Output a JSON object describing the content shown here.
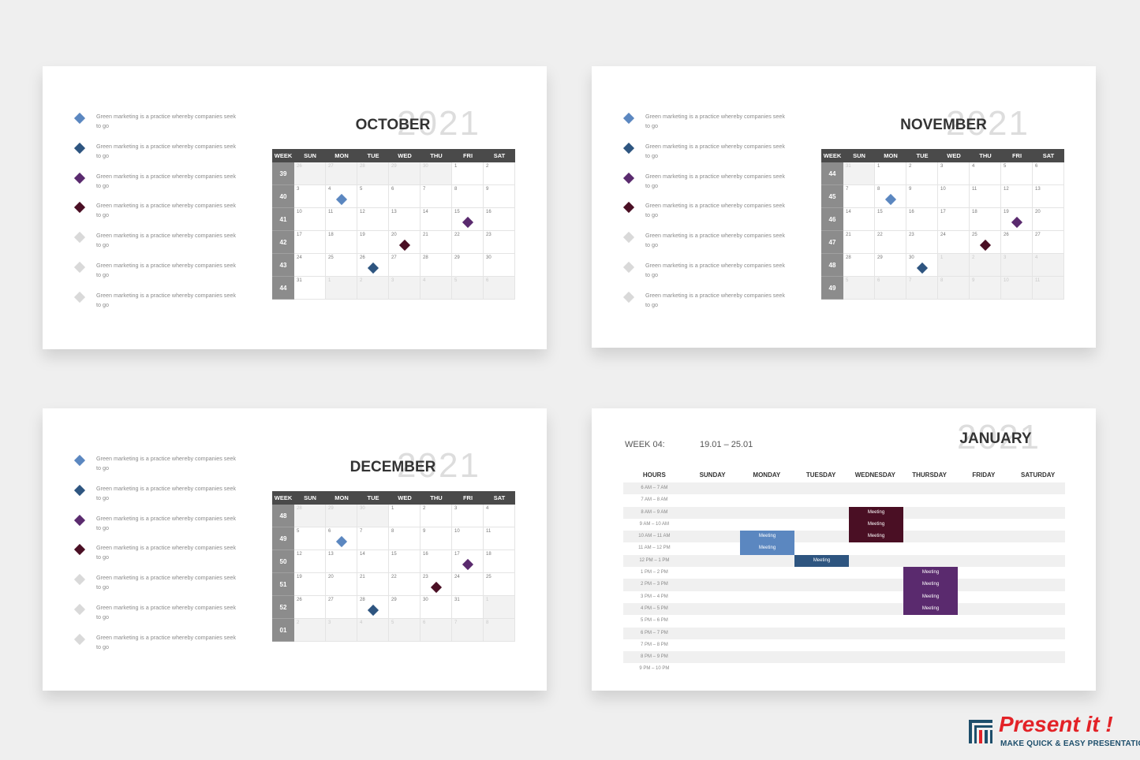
{
  "legend": {
    "text": "Green marketing is a practice whereby companies seek to go",
    "colors": [
      "#5b87c0",
      "#2e5580",
      "#5a2a6e",
      "#4a0f24",
      "#d9d9d9",
      "#d9d9d9",
      "#d9d9d9"
    ]
  },
  "weekdays": [
    "WEEK",
    "SUN",
    "MON",
    "TUE",
    "WED",
    "THU",
    "FRI",
    "SAT"
  ],
  "calendars": [
    {
      "month": "OCTOBER",
      "year": "2021",
      "weeks": [
        "39",
        "40",
        "41",
        "42",
        "43",
        "44"
      ],
      "days": [
        [
          "26",
          "27",
          "28",
          "29",
          "30",
          "1",
          "2"
        ],
        [
          "3",
          "4",
          "5",
          "6",
          "7",
          "8",
          "9"
        ],
        [
          "10",
          "11",
          "12",
          "13",
          "14",
          "15",
          "16"
        ],
        [
          "17",
          "18",
          "19",
          "20",
          "21",
          "22",
          "23"
        ],
        [
          "24",
          "25",
          "26",
          "27",
          "28",
          "29",
          "30"
        ],
        [
          "31",
          "1",
          "2",
          "3",
          "4",
          "5",
          "6"
        ]
      ]
    },
    {
      "month": "NOVEMBER",
      "year": "2021",
      "weeks": [
        "44",
        "45",
        "46",
        "47",
        "48",
        "49"
      ],
      "days": [
        [
          "31",
          "1",
          "2",
          "3",
          "4",
          "5",
          "6"
        ],
        [
          "7",
          "8",
          "9",
          "10",
          "11",
          "12",
          "13"
        ],
        [
          "14",
          "15",
          "16",
          "17",
          "18",
          "19",
          "20"
        ],
        [
          "21",
          "22",
          "23",
          "24",
          "25",
          "26",
          "27"
        ],
        [
          "28",
          "29",
          "30",
          "1",
          "2",
          "3",
          "4"
        ],
        [
          "5",
          "6",
          "7",
          "8",
          "9",
          "10",
          "11"
        ]
      ]
    },
    {
      "month": "DECEMBER",
      "year": "2021",
      "weeks": [
        "48",
        "49",
        "50",
        "51",
        "52",
        "01"
      ],
      "days": [
        [
          "28",
          "29",
          "30",
          "1",
          "2",
          "3",
          "4"
        ],
        [
          "5",
          "6",
          "7",
          "8",
          "9",
          "10",
          "11"
        ],
        [
          "12",
          "13",
          "14",
          "15",
          "16",
          "17",
          "18"
        ],
        [
          "19",
          "20",
          "21",
          "22",
          "23",
          "24",
          "25"
        ],
        [
          "26",
          "27",
          "28",
          "29",
          "30",
          "31",
          "1"
        ],
        [
          "2",
          "3",
          "4",
          "5",
          "6",
          "7",
          "8"
        ]
      ]
    }
  ],
  "weekly": {
    "month": "JANUARY",
    "year": "2021",
    "week_label": "WEEK 04:",
    "range": "19.01 – 25.01",
    "headers": [
      "HOURS",
      "SUNDAY",
      "MONDAY",
      "TUESDAY",
      "WEDNESDAY",
      "THURSDAY",
      "FRIDAY",
      "SATURDAY"
    ],
    "hours": [
      "6 AM – 7 AM",
      "7 AM – 8 AM",
      "8 AM – 9 AM",
      "9 AM – 10 AM",
      "10 AM – 11 AM",
      "11 AM – 12 PM",
      "12 PM – 1 PM",
      "1 PM – 2 PM",
      "2 PM – 3 PM",
      "3 PM – 4 PM",
      "4 PM – 5 PM",
      "5 PM – 6 PM",
      "6 PM – 7 PM",
      "7 PM – 8 PM",
      "8 PM – 9 PM",
      "9 PM – 10 PM"
    ],
    "event_label": "Meeting",
    "events": [
      {
        "day": "WEDNESDAY",
        "start_hour_index": 2,
        "slots": 3,
        "color": "#4a0f24"
      },
      {
        "day": "MONDAY",
        "start_hour_index": 4,
        "slots": 2,
        "color": "#5b87c0"
      },
      {
        "day": "TUESDAY",
        "start_hour_index": 6,
        "slots": 1,
        "color": "#2e5580"
      },
      {
        "day": "THURSDAY",
        "start_hour_index": 7,
        "slots": 4,
        "color": "#5a2a6e"
      }
    ]
  },
  "brand": {
    "name": "Present it !",
    "tagline": "MAKE QUICK & EASY PRESENTATIONS",
    "color": "#e32227",
    "tag_color": "#1d4e6b"
  }
}
